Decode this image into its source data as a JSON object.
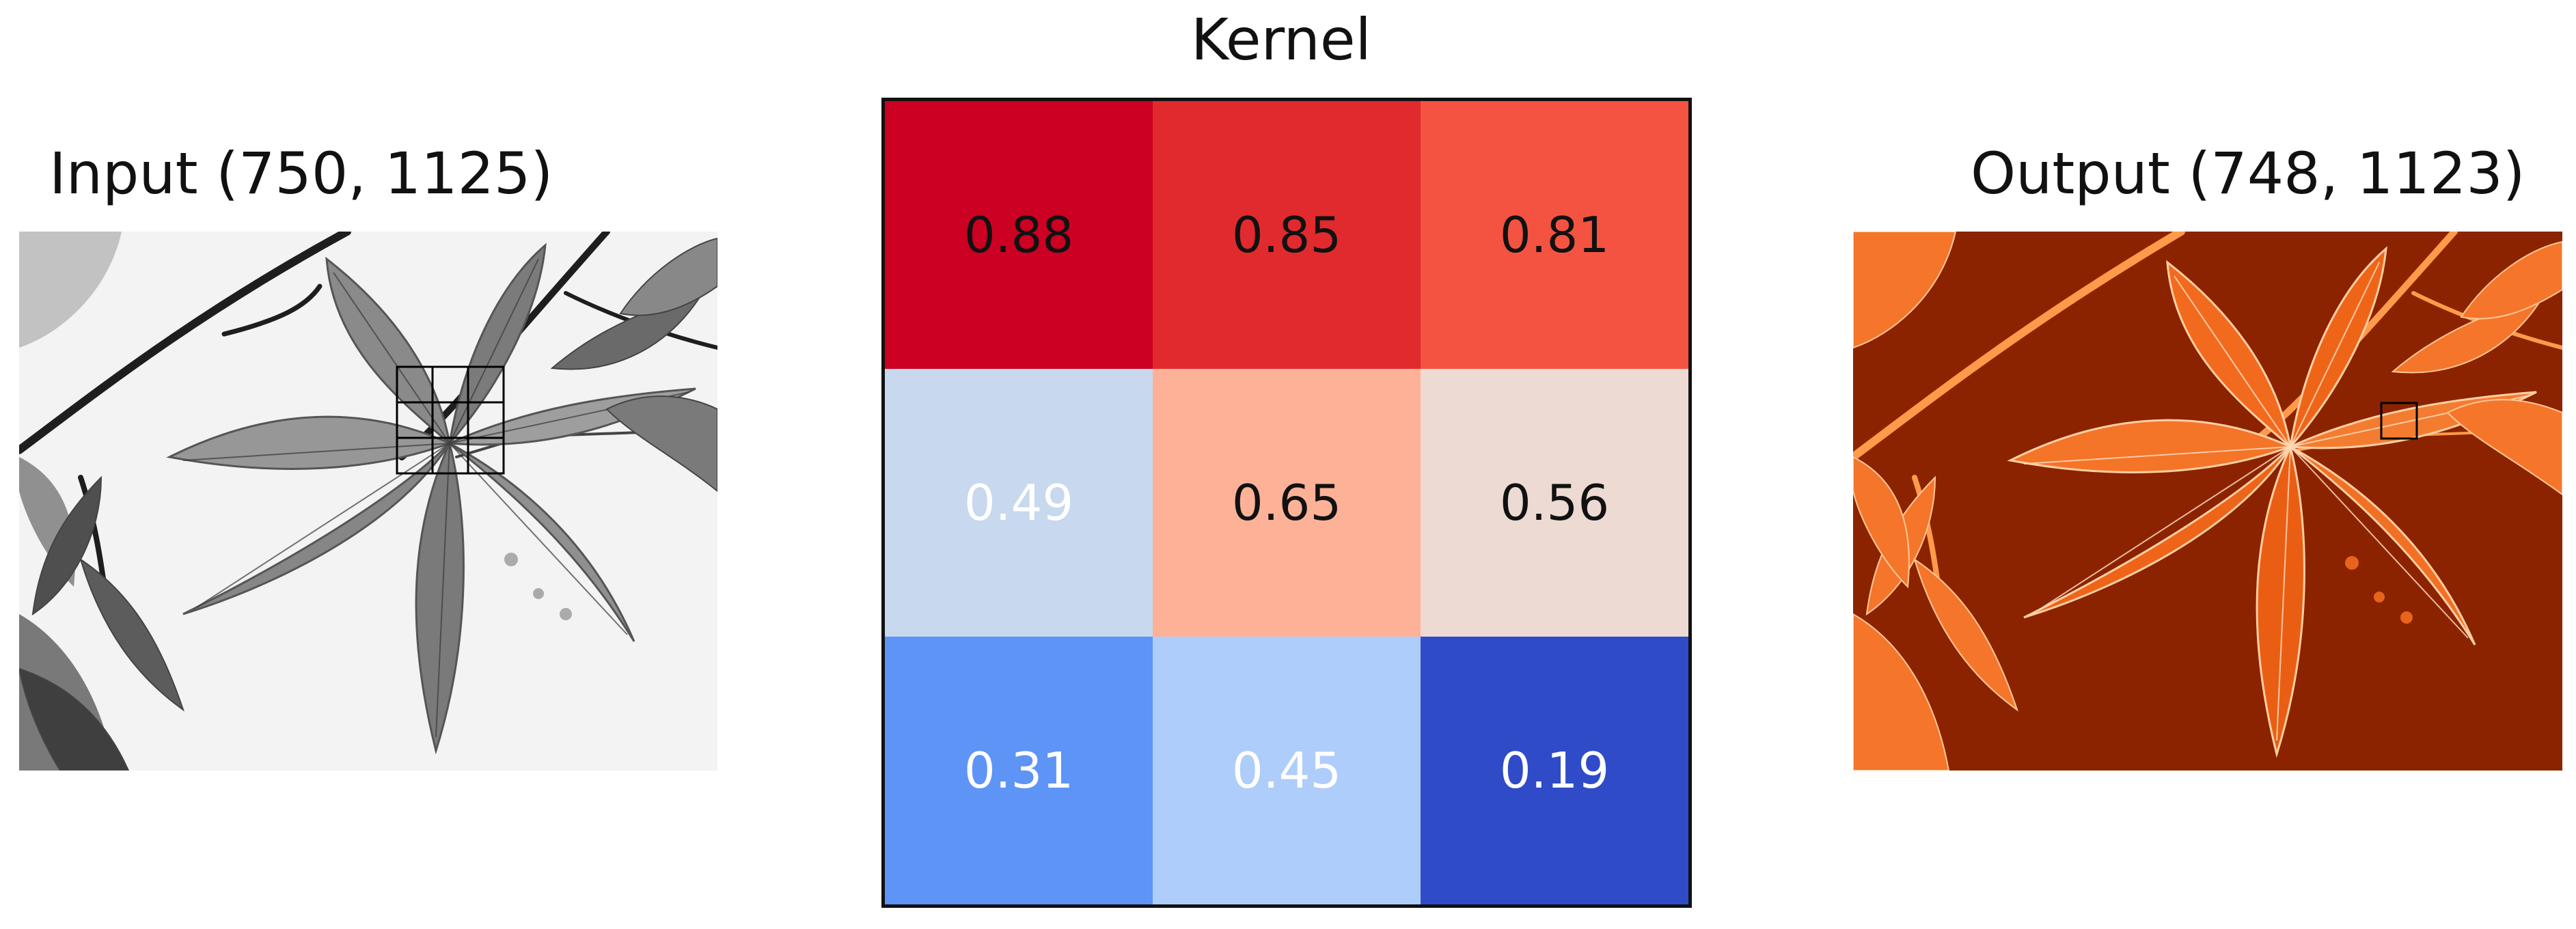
{
  "input": {
    "title": "Input (750, 1125)",
    "colormap": "gray",
    "kernel_window": "3x3"
  },
  "kernel": {
    "title": "Kernel",
    "colormap": "coolwarm",
    "cells": [
      {
        "label": "0.88",
        "bg": "#cc0022",
        "fg": "#111111"
      },
      {
        "label": "0.85",
        "bg": "#e12a2d",
        "fg": "#111111"
      },
      {
        "label": "0.81",
        "bg": "#f45341",
        "fg": "#111111"
      },
      {
        "label": "0.49",
        "bg": "#c7d8ef",
        "fg": "#ffffff"
      },
      {
        "label": "0.65",
        "bg": "#fdb297",
        "fg": "#111111"
      },
      {
        "label": "0.56",
        "bg": "#ecdad3",
        "fg": "#111111"
      },
      {
        "label": "0.31",
        "bg": "#5e94f5",
        "fg": "#ffffff"
      },
      {
        "label": "0.45",
        "bg": "#afcdfa",
        "fg": "#ffffff"
      },
      {
        "label": "0.19",
        "bg": "#2f4bc7",
        "fg": "#ffffff"
      }
    ]
  },
  "output": {
    "title": "Output (748, 1123)",
    "colormap": "orange",
    "background_color": "#8c2300",
    "leaf_color": "#f26a1e"
  }
}
